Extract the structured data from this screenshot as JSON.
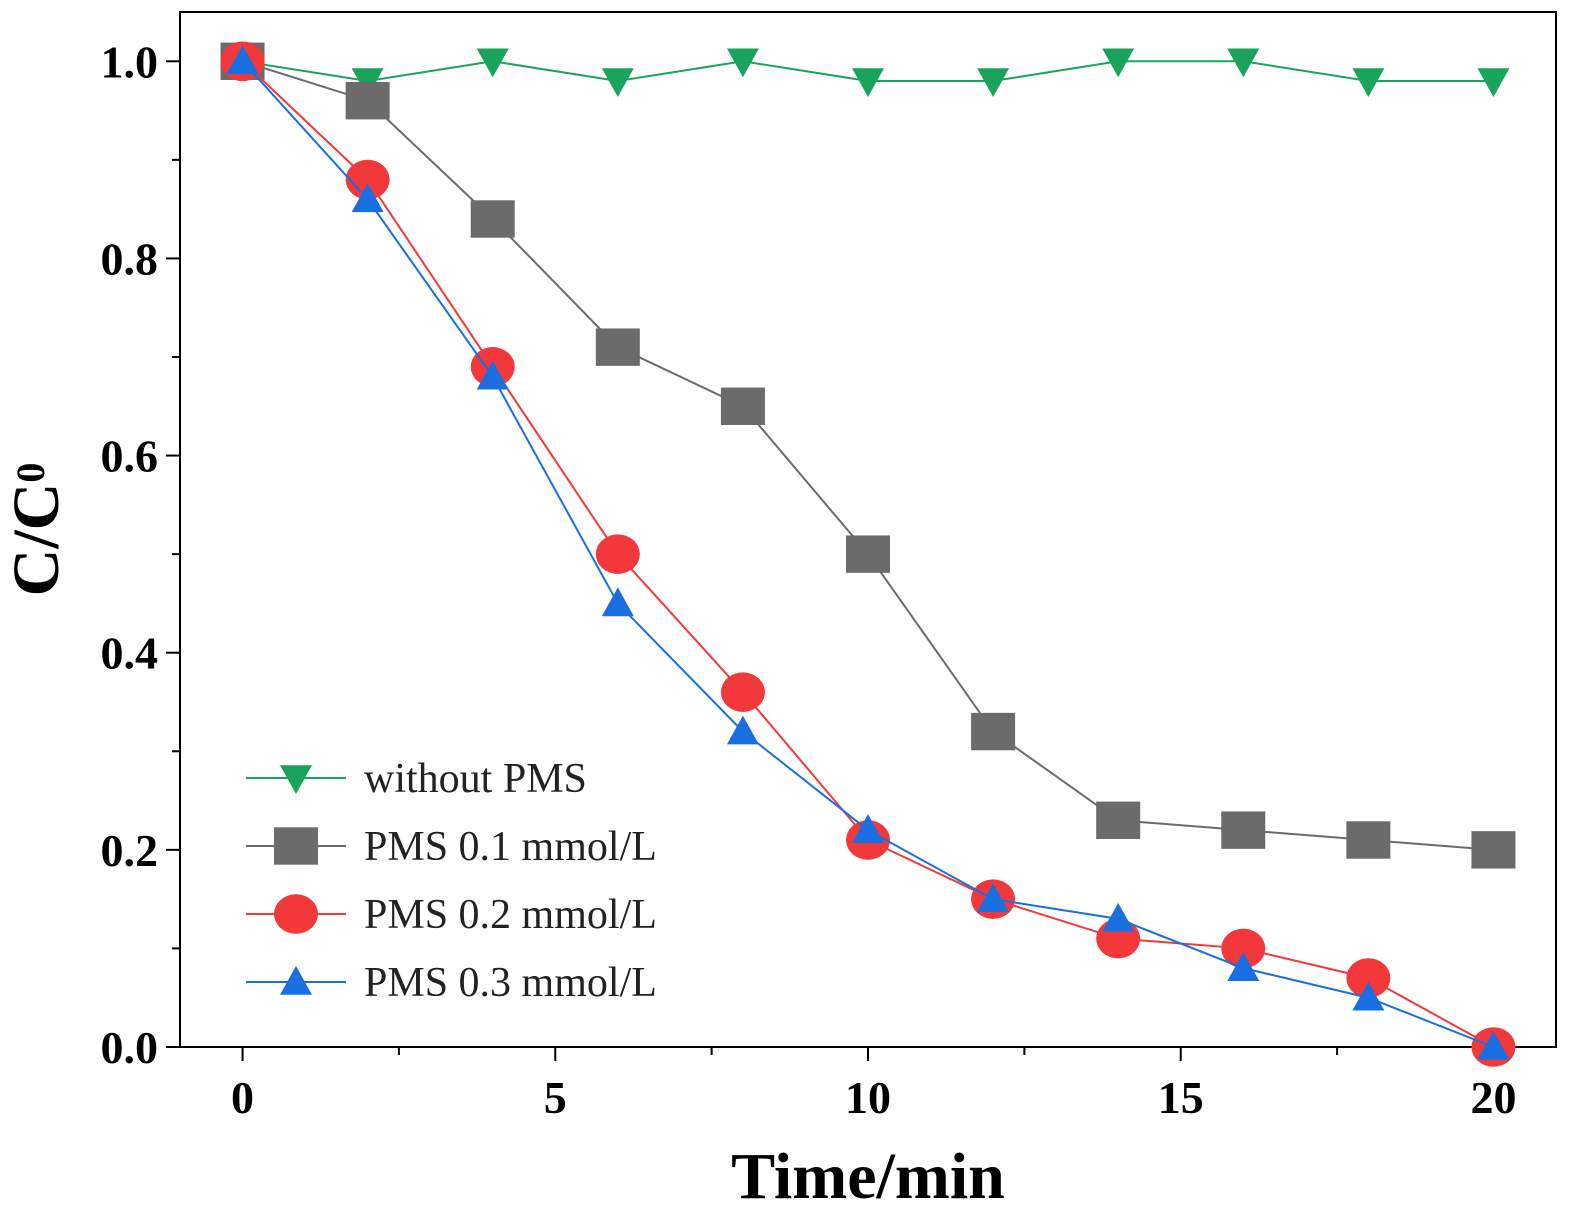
{
  "chart_data": {
    "type": "line",
    "title": "",
    "xlabel": "Time/min",
    "ylabel": "C/C",
    "ylabel_subscript": "0",
    "xlim": [
      -1,
      21
    ],
    "ylim": [
      0,
      1.05
    ],
    "xticks": [
      0,
      5,
      10,
      15,
      20
    ],
    "xtick_labels": [
      "0",
      "5",
      "10",
      "15",
      "20"
    ],
    "yticks": [
      0.0,
      0.2,
      0.4,
      0.6,
      0.8,
      1.0
    ],
    "ytick_labels": [
      "0.0",
      "0.2",
      "0.4",
      "0.6",
      "0.8",
      "1.0"
    ],
    "grid": false,
    "legend_position": "bottom-left",
    "x": [
      0,
      2,
      4,
      6,
      8,
      10,
      12,
      14,
      16,
      18,
      20
    ],
    "series": [
      {
        "name": "without PMS",
        "marker": "triangle-down",
        "color": "#1aa35a",
        "values": [
          1.0,
          0.98,
          1.0,
          0.98,
          1.0,
          0.98,
          0.98,
          1.0,
          1.0,
          0.98,
          0.98
        ]
      },
      {
        "name": "PMS 0.1 mmol/L",
        "marker": "square",
        "color": "#6b6b6b",
        "values": [
          1.0,
          0.96,
          0.84,
          0.71,
          0.65,
          0.5,
          0.32,
          0.23,
          0.22,
          0.21,
          0.2
        ]
      },
      {
        "name": "PMS 0.2 mmol/L",
        "marker": "circle",
        "color": "#f2383a",
        "values": [
          1.0,
          0.88,
          0.69,
          0.5,
          0.36,
          0.21,
          0.15,
          0.11,
          0.1,
          0.07,
          0.0
        ]
      },
      {
        "name": "PMS 0.3 mmol/L",
        "marker": "triangle-up",
        "color": "#1a6fe0",
        "values": [
          1.0,
          0.86,
          0.68,
          0.45,
          0.32,
          0.22,
          0.15,
          0.13,
          0.08,
          0.05,
          0.0
        ]
      }
    ]
  }
}
